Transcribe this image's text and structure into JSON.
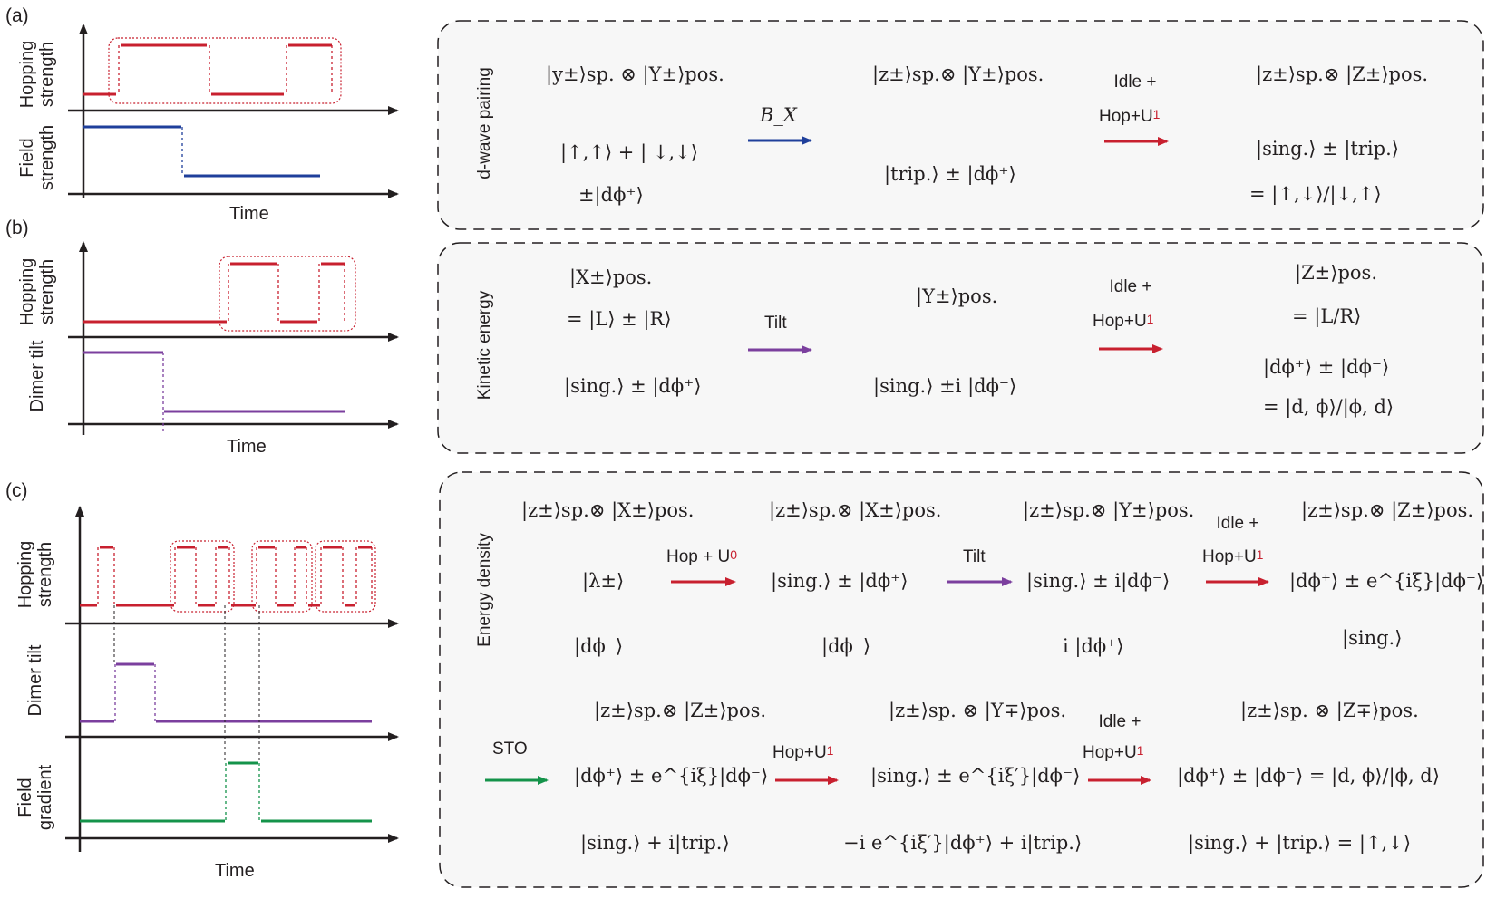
{
  "panels": {
    "a": {
      "tag": "(a)",
      "axes": [
        "Hopping strength",
        "Field strength"
      ],
      "time": "Time",
      "box_title": "d-wave pairing",
      "s1": [
        "|y±⟩sp. ⊗ |Y±⟩pos.",
        "|↑,↑⟩ + | ↓,↓⟩",
        "±|dϕ⁺⟩"
      ],
      "op1": "B_X",
      "s2": [
        "|z±⟩sp.⊗ |Y±⟩pos.",
        "|trip.⟩ ± |dϕ⁺⟩"
      ],
      "op2": [
        "Idle +",
        "Hop+U",
        "1"
      ],
      "s3": [
        "|z±⟩sp.⊗ |Z±⟩pos.",
        "|sing.⟩ ± |trip.⟩",
        "= |↑,↓⟩/|↓,↑⟩"
      ]
    },
    "b": {
      "tag": "(b)",
      "axes": [
        "Hopping strength",
        "Dimer tilt"
      ],
      "time": "Time",
      "box_title": "Kinetic energy",
      "s1": [
        "|X±⟩pos.",
        "= |L⟩ ± |R⟩",
        "|sing.⟩ ± |dϕ⁺⟩"
      ],
      "op1": "Tilt",
      "s2": [
        "|Y±⟩pos.",
        "|sing.⟩ ±i |dϕ⁻⟩"
      ],
      "op2": [
        "Idle +",
        "Hop+U",
        "1"
      ],
      "s3": [
        "|Z±⟩pos.",
        "= |L/R⟩",
        "|dϕ⁺⟩ ± |dϕ⁻⟩",
        "= |d, ϕ⟩/|ϕ, d⟩"
      ]
    },
    "c": {
      "tag": "(c)",
      "axes": [
        "Hopping strength",
        "Dimer tilt",
        "Field gradient"
      ],
      "time": "Time",
      "box_title": "Energy density",
      "r1": {
        "s1": [
          "|z±⟩sp.⊗ |X±⟩pos.",
          "|λ±⟩",
          "|dϕ⁻⟩"
        ],
        "op1": [
          "Hop + U",
          "0"
        ],
        "s2": [
          "|z±⟩sp.⊗ |X±⟩pos.",
          "|sing.⟩ ± |dϕ⁺⟩",
          "|dϕ⁻⟩"
        ],
        "op2": "Tilt",
        "s3": [
          "|z±⟩sp.⊗ |Y±⟩pos.",
          "|sing.⟩ ± i|dϕ⁻⟩",
          "i |dϕ⁺⟩"
        ],
        "op3": [
          "Idle +",
          "Hop+U",
          "1"
        ],
        "s4": [
          "|z±⟩sp.⊗ |Z±⟩pos.",
          "|dϕ⁺⟩ ± e^{iξ}|dϕ⁻⟩",
          "|sing.⟩"
        ]
      },
      "r2": {
        "op0": "STO",
        "s1": [
          "|z±⟩sp.⊗ |Z±⟩pos.",
          "|dϕ⁺⟩ ± e^{iξ}|dϕ⁻⟩",
          "|sing.⟩ + i|trip.⟩"
        ],
        "op1": [
          "Hop+U",
          "1"
        ],
        "s2": [
          "|z±⟩sp. ⊗ |Y∓⟩pos.",
          "|sing.⟩ ± e^{iξ′}|dϕ⁻⟩",
          "−i e^{iξ′}|dϕ⁺⟩ + i|trip.⟩"
        ],
        "op2": [
          "Idle +",
          "Hop+U",
          "1"
        ],
        "s3": [
          "|z±⟩sp. ⊗ |Z∓⟩pos.",
          "|dϕ⁺⟩ ± |dϕ⁻⟩ = |d, ϕ⟩/|ϕ, d⟩",
          "|sing.⟩ + |trip.⟩ = |↑,↓⟩"
        ]
      }
    }
  },
  "colors": {
    "hop": "#c8202f",
    "field": "#1f3f9b",
    "tilt": "#7b3f9e",
    "gradient": "#14934a",
    "box_bg": "#f7f7f7"
  }
}
